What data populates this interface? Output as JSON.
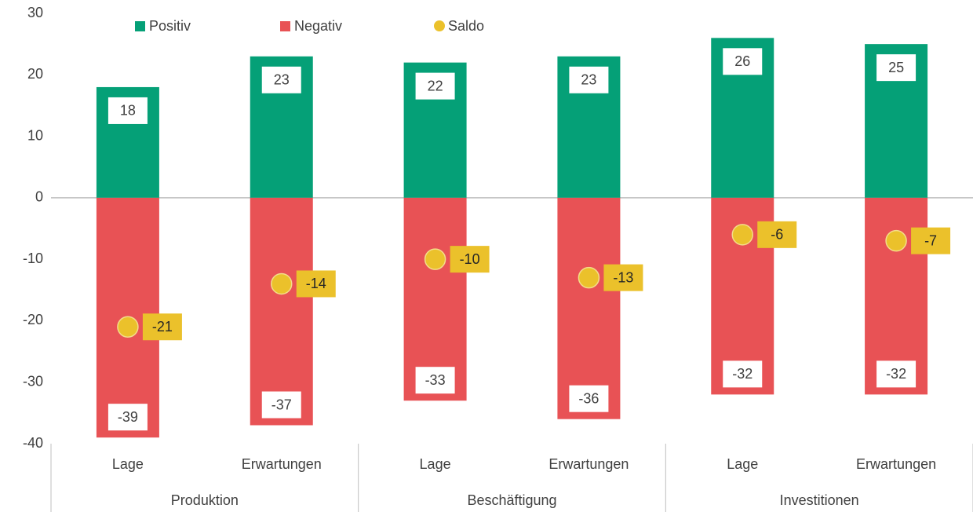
{
  "chart_data": {
    "type": "bar",
    "stacked": true,
    "categories": [
      "Lage",
      "Erwartungen",
      "Lage",
      "Erwartungen",
      "Lage",
      "Erwartungen"
    ],
    "groups": [
      "Produktion",
      "Beschäftigung",
      "Investitionen"
    ],
    "series": [
      {
        "name": "Positiv",
        "color": "#05a077",
        "values": [
          18,
          23,
          22,
          23,
          26,
          25
        ]
      },
      {
        "name": "Negativ",
        "color": "#e85255",
        "values": [
          -39,
          -37,
          -33,
          -36,
          -32,
          -32
        ]
      },
      {
        "name": "Saldo",
        "type": "scatter",
        "color": "#ebc12b",
        "values": [
          -21,
          -14,
          -10,
          -13,
          -6,
          -7
        ]
      }
    ],
    "ylim": [
      -40,
      30
    ],
    "yticks": [
      -40,
      -30,
      -20,
      -10,
      0,
      10,
      20,
      30
    ],
    "legend": "top",
    "data_labels": true
  }
}
